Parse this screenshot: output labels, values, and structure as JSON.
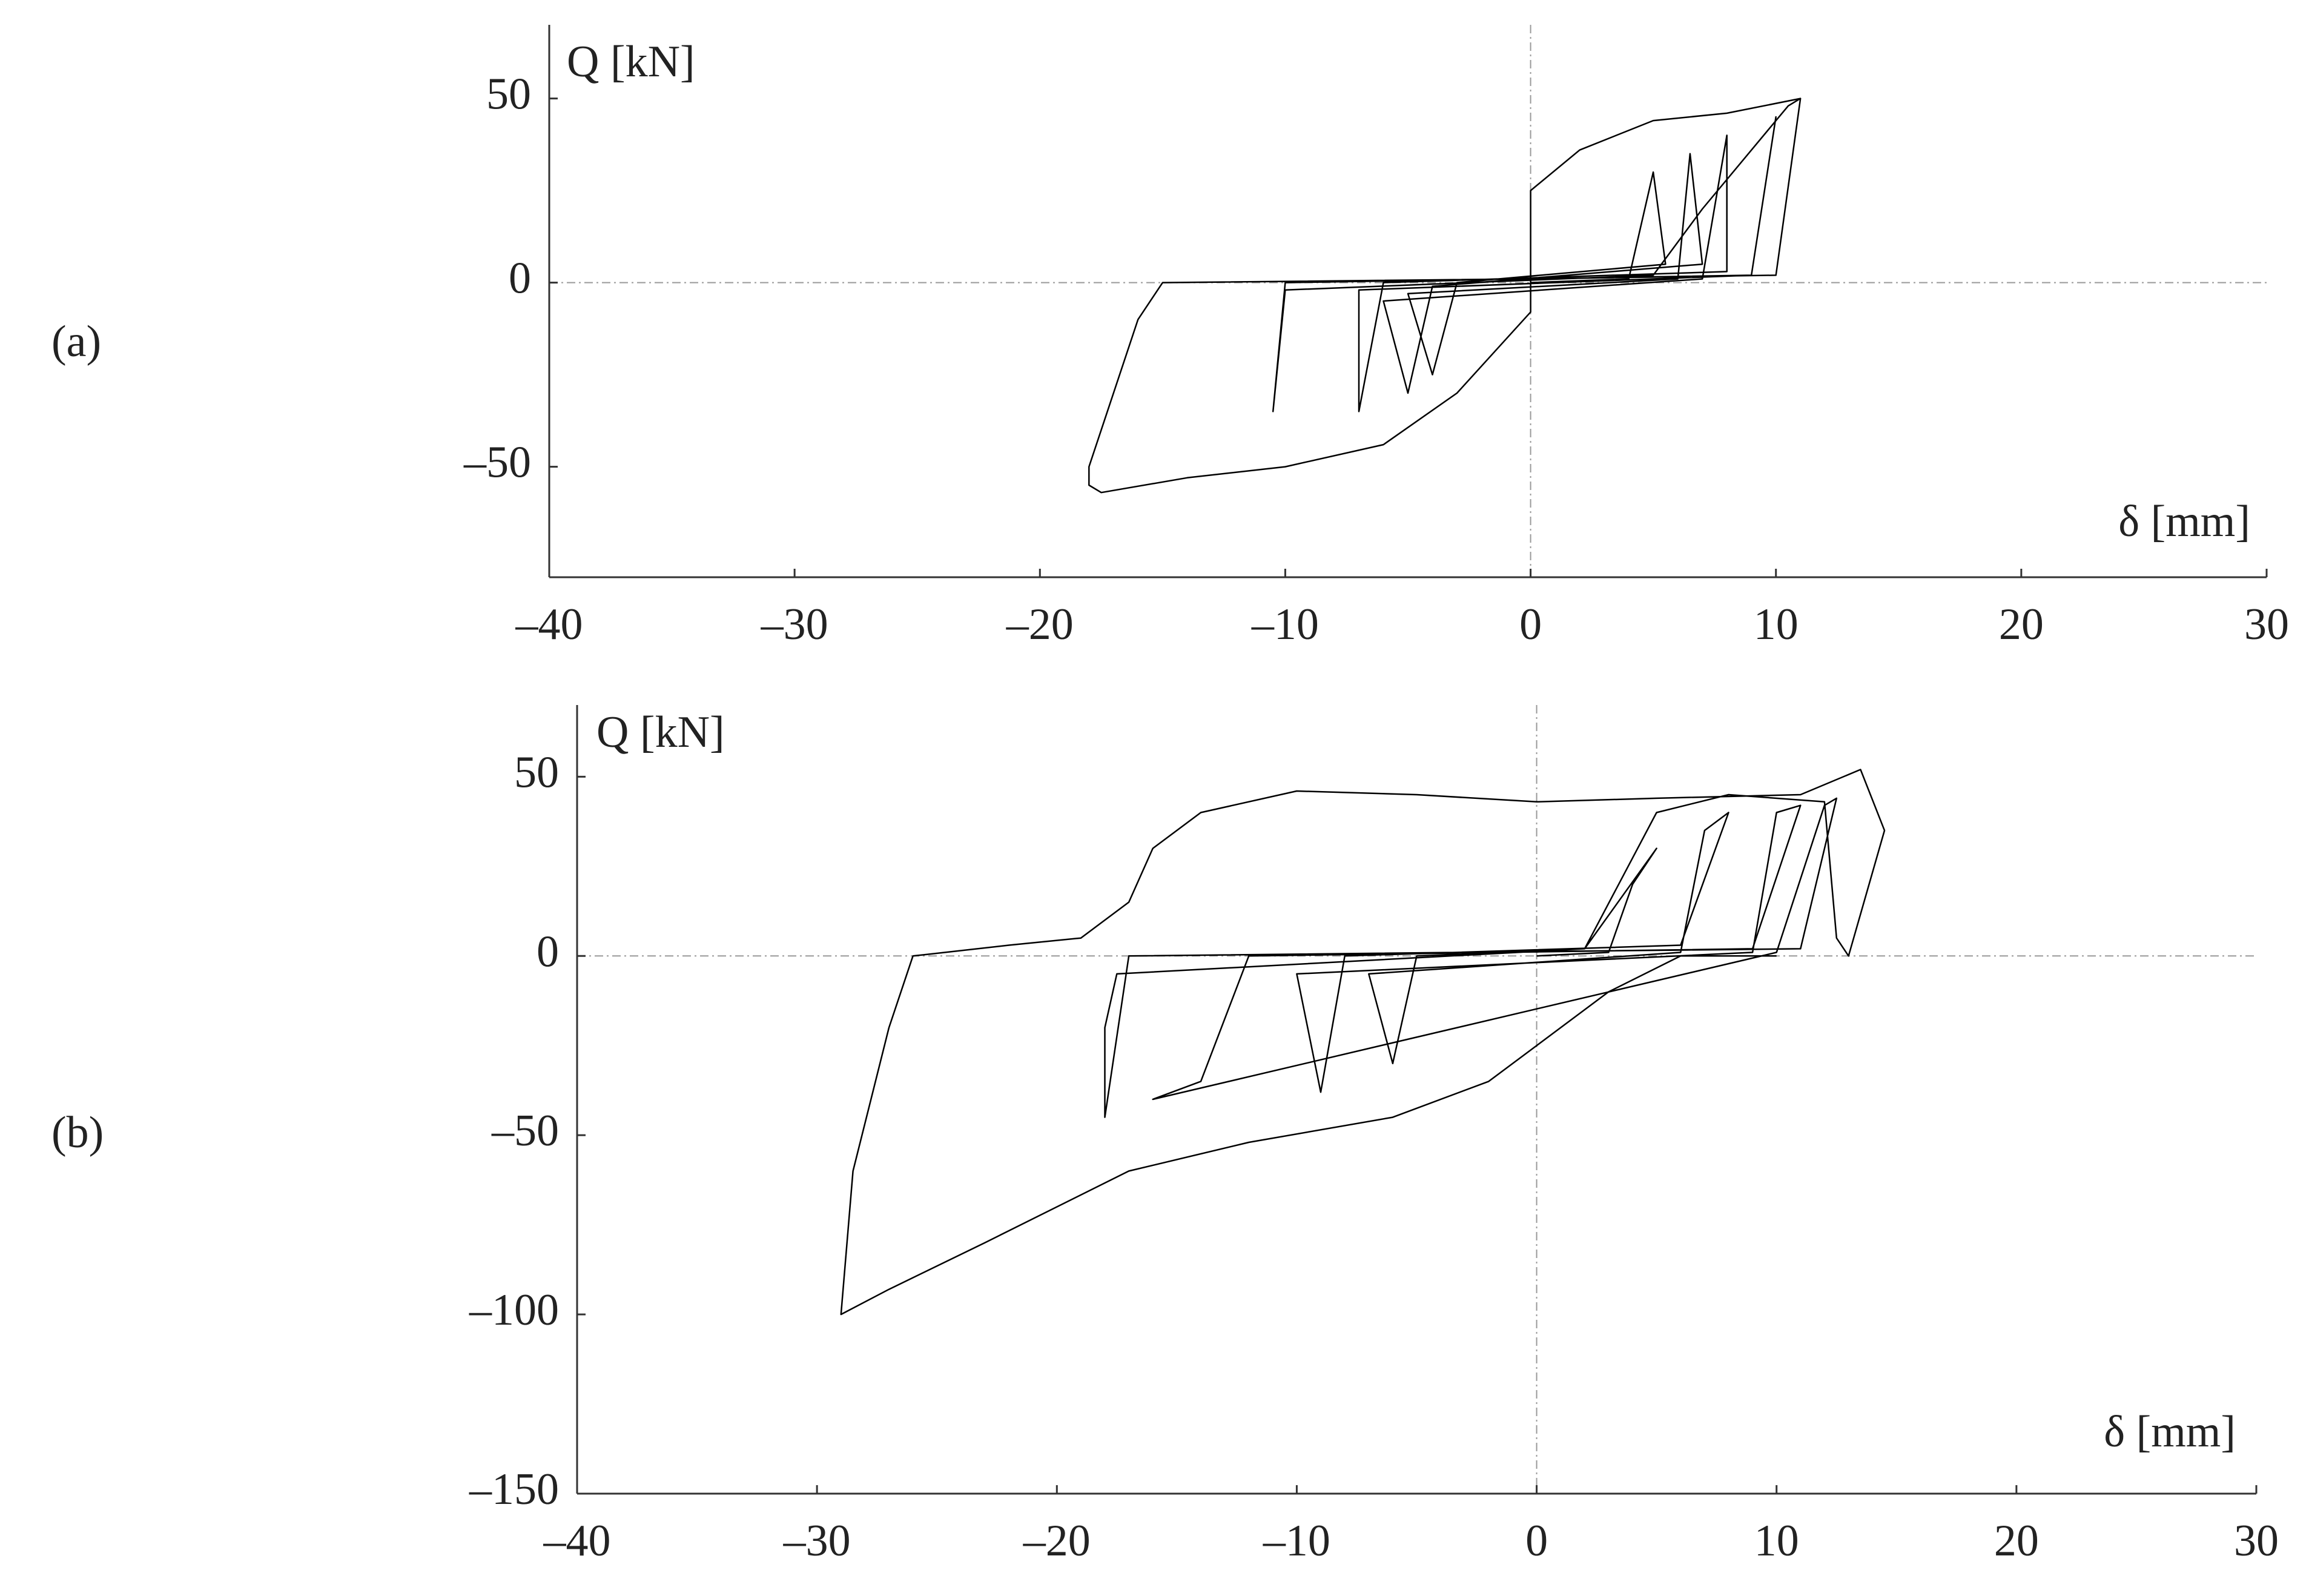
{
  "chart_data": [
    {
      "type": "line",
      "label": "(a)",
      "ylabel": "Q [kN]",
      "xlabel": "δ [mm]",
      "color": "#000000",
      "zero_lines": true,
      "xlim": [
        -40,
        30
      ],
      "ylim": [
        -80,
        70
      ],
      "xticks": [
        {
          "value": -40,
          "label": "–40"
        },
        {
          "value": -30,
          "label": "–30"
        },
        {
          "value": -20,
          "label": "–20"
        },
        {
          "value": -10,
          "label": "–10"
        },
        0,
        10,
        20,
        30
      ],
      "yticks": [
        {
          "value": -50,
          "label": "–50"
        },
        0,
        50
      ],
      "x": [
        0,
        4,
        5,
        5.5,
        -3,
        -4,
        -5,
        6,
        6.5,
        7,
        -4,
        -5,
        -6,
        7,
        8,
        8,
        -6,
        -7,
        -7,
        9,
        10,
        9,
        -10,
        -10.5,
        -10,
        5,
        7,
        10.5,
        11,
        10,
        0,
        -15,
        -16,
        -18,
        -18,
        -17.5,
        -14,
        -10,
        -6,
        -3,
        0,
        0,
        2,
        5,
        8,
        11
      ],
      "values": [
        0,
        1,
        30,
        5,
        0,
        -25,
        -3,
        1,
        35,
        5,
        -1,
        -30,
        -5,
        1,
        40,
        3,
        0,
        -35,
        -2,
        2,
        45,
        2,
        0,
        -35,
        -2,
        2,
        20,
        48,
        50,
        2,
        1,
        0,
        -10,
        -50,
        -55,
        -57,
        -53,
        -50,
        -44,
        -30,
        -8,
        25,
        36,
        44,
        46,
        50
      ]
    },
    {
      "type": "line",
      "label": "(b)",
      "ylabel": "Q [kN]",
      "xlabel": "δ [mm]",
      "color": "#000000",
      "zero_lines": true,
      "xlim": [
        -40,
        30
      ],
      "ylim": [
        -150,
        70
      ],
      "xticks": [
        {
          "value": -40,
          "label": "–40"
        },
        {
          "value": -30,
          "label": "–30"
        },
        {
          "value": -20,
          "label": "–20"
        },
        {
          "value": -10,
          "label": "–10"
        },
        0,
        10,
        20,
        30
      ],
      "yticks": [
        {
          "value": -150,
          "label": "–150"
        },
        {
          "value": -100,
          "label": "–100"
        },
        {
          "value": -50,
          "label": "–50"
        },
        0,
        50
      ],
      "x": [
        0,
        3,
        4,
        5,
        2,
        -5,
        -6,
        -7,
        6,
        7,
        8,
        6,
        -8,
        -9,
        -10,
        9,
        10,
        11,
        9,
        -12,
        -14,
        -16,
        10,
        12,
        12.5,
        11,
        -17,
        -18,
        -18,
        -17.5,
        2,
        5,
        8,
        12,
        12.5,
        13,
        14.5,
        13.5,
        11,
        5,
        0,
        -5,
        -10,
        -14,
        -16,
        -17,
        -19,
        -22,
        -26,
        -27,
        -28.5,
        -29,
        -27,
        -23,
        -17,
        -12,
        -6,
        -2,
        0,
        3,
        6,
        10
      ],
      "values": [
        0,
        1,
        20,
        30,
        2,
        0,
        -30,
        -5,
        1,
        35,
        40,
        3,
        0,
        -38,
        -5,
        1,
        40,
        42,
        2,
        0,
        -35,
        -40,
        1,
        42,
        44,
        2,
        0,
        -45,
        -20,
        -5,
        2,
        40,
        45,
        43,
        5,
        0,
        35,
        52,
        45,
        44,
        43,
        45,
        46,
        40,
        30,
        15,
        5,
        3,
        0,
        -20,
        -60,
        -100,
        -93,
        -80,
        -60,
        -52,
        -45,
        -35,
        -25,
        -10,
        0,
        0
      ]
    }
  ]
}
